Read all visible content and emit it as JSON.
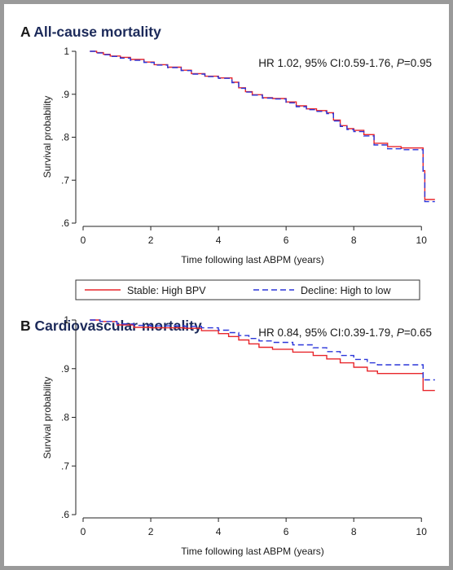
{
  "figure": {
    "panel_a_letter": "A",
    "panel_a_title": "All-cause mortality",
    "panel_b_letter": "B",
    "panel_b_title": "Cardiovascular mortality"
  },
  "colors": {
    "stable": "#e8262b",
    "decline": "#2b36d9",
    "title": "#1c2a5a",
    "frame": "#9a9a9a"
  },
  "legend": [
    "Stable: High BPV",
    "Decline: High to low"
  ],
  "chart_data": [
    {
      "type": "line",
      "panel": "A",
      "title": "All-cause mortality",
      "xlabel": "Time following last ABPM (years)",
      "ylabel": "Survival probability",
      "xlim": [
        0,
        10.5
      ],
      "ylim": [
        0.6,
        1.0
      ],
      "xticks": [
        0,
        2,
        4,
        6,
        8,
        10
      ],
      "yticks": [
        0.6,
        0.7,
        0.8,
        0.9,
        1.0
      ],
      "ytick_labels": [
        ".6",
        ".7",
        ".8",
        ".9",
        "1"
      ],
      "annotation": {
        "prefix": "HR 1.02, 95% CI:0.59-1.76, ",
        "p_label": "P",
        "suffix": "=0.95"
      },
      "series": [
        {
          "name": "Stable: High BPV",
          "x": [
            0.2,
            0.4,
            0.6,
            0.8,
            1.1,
            1.4,
            1.8,
            2.1,
            2.5,
            2.9,
            3.2,
            3.6,
            4.0,
            4.4,
            4.6,
            4.8,
            5.0,
            5.3,
            5.6,
            6.0,
            6.3,
            6.6,
            6.9,
            7.2,
            7.4,
            7.6,
            7.8,
            8.0,
            8.3,
            8.6,
            9.0,
            9.4,
            10.0,
            10.05,
            10.1,
            10.4
          ],
          "y": [
            1.0,
            0.997,
            0.993,
            0.989,
            0.986,
            0.981,
            0.975,
            0.969,
            0.963,
            0.956,
            0.948,
            0.942,
            0.938,
            0.928,
            0.915,
            0.906,
            0.899,
            0.892,
            0.89,
            0.882,
            0.873,
            0.866,
            0.862,
            0.857,
            0.84,
            0.827,
            0.82,
            0.816,
            0.806,
            0.786,
            0.778,
            0.775,
            0.775,
            0.722,
            0.655,
            0.655
          ]
        },
        {
          "name": "Decline: High to low",
          "x": [
            0.2,
            0.4,
            0.6,
            0.8,
            1.1,
            1.4,
            1.8,
            2.1,
            2.5,
            2.9,
            3.2,
            3.6,
            4.0,
            4.4,
            4.6,
            4.8,
            5.0,
            5.3,
            5.6,
            6.0,
            6.3,
            6.6,
            6.9,
            7.2,
            7.4,
            7.6,
            7.8,
            8.0,
            8.3,
            8.6,
            9.0,
            9.4,
            10.0,
            10.05,
            10.1,
            10.4
          ],
          "y": [
            1.0,
            0.996,
            0.992,
            0.988,
            0.984,
            0.979,
            0.974,
            0.968,
            0.962,
            0.955,
            0.947,
            0.941,
            0.937,
            0.927,
            0.914,
            0.905,
            0.898,
            0.891,
            0.889,
            0.88,
            0.871,
            0.864,
            0.86,
            0.855,
            0.838,
            0.825,
            0.818,
            0.813,
            0.803,
            0.782,
            0.773,
            0.771,
            0.771,
            0.718,
            0.65,
            0.65
          ]
        }
      ]
    },
    {
      "type": "line",
      "panel": "B",
      "title": "Cardiovascular mortality",
      "xlabel": "Time following last ABPM (years)",
      "ylabel": "Survival probability",
      "xlim": [
        0,
        10.5
      ],
      "ylim": [
        0.6,
        1.0
      ],
      "xticks": [
        0,
        2,
        4,
        6,
        8,
        10
      ],
      "yticks": [
        0.6,
        0.7,
        0.8,
        0.9,
        1.0
      ],
      "ytick_labels": [
        ".6",
        ".7",
        ".8",
        ".9",
        "1"
      ],
      "annotation": {
        "prefix": "HR 0.84, 95% CI:0.39-1.79, ",
        "p_label": "P",
        "suffix": "=0.65"
      },
      "series": [
        {
          "name": "Stable: High BPV",
          "x": [
            0.2,
            0.5,
            1.0,
            1.5,
            2.0,
            3.0,
            3.5,
            4.0,
            4.3,
            4.6,
            4.9,
            5.2,
            5.6,
            6.2,
            6.8,
            7.2,
            7.6,
            8.0,
            8.4,
            8.7,
            9.2,
            10.0,
            10.05,
            10.4
          ],
          "y": [
            1.0,
            0.997,
            0.99,
            0.985,
            0.984,
            0.983,
            0.978,
            0.972,
            0.966,
            0.959,
            0.951,
            0.944,
            0.94,
            0.934,
            0.927,
            0.92,
            0.912,
            0.903,
            0.895,
            0.89,
            0.89,
            0.89,
            0.855,
            0.855
          ]
        },
        {
          "name": "Decline: High to low",
          "x": [
            0.2,
            0.5,
            1.0,
            1.5,
            2.0,
            3.0,
            3.5,
            4.0,
            4.3,
            4.6,
            4.9,
            5.2,
            5.6,
            6.2,
            6.8,
            7.2,
            7.6,
            8.0,
            8.4,
            8.7,
            9.2,
            10.0,
            10.05,
            10.4
          ],
          "y": [
            1.0,
            0.997,
            0.992,
            0.989,
            0.988,
            0.987,
            0.984,
            0.979,
            0.974,
            0.968,
            0.962,
            0.957,
            0.954,
            0.949,
            0.943,
            0.935,
            0.927,
            0.919,
            0.912,
            0.908,
            0.908,
            0.908,
            0.877,
            0.877
          ]
        }
      ]
    }
  ]
}
